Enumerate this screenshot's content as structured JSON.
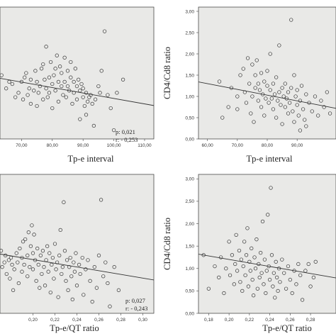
{
  "chart_data": [
    {
      "type": "scatter",
      "xlabel": "Tp-e interval",
      "ylabel": "",
      "xlim": [
        63,
        113
      ],
      "ylim": [
        0,
        3
      ],
      "xticks": [
        "70,00",
        "80,00",
        "90,00",
        "100,00",
        "110,00"
      ],
      "xtick_values": [
        70,
        80,
        90,
        100,
        110
      ],
      "yticks": [],
      "ytick_values": [],
      "annotations": [
        "p: 0,021",
        "r: - 0,253"
      ],
      "grid": false,
      "fit_line": [
        [
          63,
          1.38
        ],
        [
          113,
          0.76
        ]
      ],
      "points": [
        [
          63.5,
          1.45
        ],
        [
          65,
          1.15
        ],
        [
          66,
          1.3
        ],
        [
          67,
          1.25
        ],
        [
          68,
          0.95
        ],
        [
          69,
          1.05
        ],
        [
          70,
          1.3
        ],
        [
          70.5,
          0.9
        ],
        [
          71,
          1.4
        ],
        [
          71.5,
          1.5
        ],
        [
          72,
          1.0
        ],
        [
          72.5,
          1.15
        ],
        [
          73,
          0.8
        ],
        [
          73,
          1.35
        ],
        [
          74,
          1.1
        ],
        [
          74.5,
          1.55
        ],
        [
          75,
          0.75
        ],
        [
          75,
          1.3
        ],
        [
          75.5,
          1.05
        ],
        [
          76,
          1.2
        ],
        [
          76.5,
          1.6
        ],
        [
          77,
          1.7
        ],
        [
          77,
          0.9
        ],
        [
          77.5,
          1.35
        ],
        [
          78,
          2.1
        ],
        [
          78,
          1.15
        ],
        [
          78.5,
          0.95
        ],
        [
          79,
          1.4
        ],
        [
          79,
          1.05
        ],
        [
          79.5,
          1.75
        ],
        [
          80,
          1.25
        ],
        [
          80,
          0.7
        ],
        [
          80.5,
          1.45
        ],
        [
          81,
          1.6
        ],
        [
          81,
          1.1
        ],
        [
          81.5,
          1.9
        ],
        [
          82,
          1.3
        ],
        [
          82,
          0.85
        ],
        [
          82.5,
          1.65
        ],
        [
          83,
          1.2
        ],
        [
          83,
          1.5
        ],
        [
          83.5,
          1.0
        ],
        [
          84,
          1.85
        ],
        [
          84,
          1.3
        ],
        [
          84.5,
          0.95
        ],
        [
          85,
          1.2
        ],
        [
          85,
          1.55
        ],
        [
          85.5,
          1.1
        ],
        [
          86,
          1.4
        ],
        [
          86,
          1.75
        ],
        [
          86.5,
          0.8
        ],
        [
          87,
          1.3
        ],
        [
          87,
          1.05
        ],
        [
          87.5,
          1.6
        ],
        [
          88,
          1.2
        ],
        [
          88,
          0.9
        ],
        [
          88.5,
          1.35
        ],
        [
          89,
          0.45
        ],
        [
          89,
          1.1
        ],
        [
          89.5,
          1.25
        ],
        [
          90,
          0.95
        ],
        [
          90,
          1.15
        ],
        [
          90.5,
          0.75
        ],
        [
          91,
          0.55
        ],
        [
          91,
          1.05
        ],
        [
          91.5,
          0.85
        ],
        [
          92,
          0.95
        ],
        [
          92.5,
          1.0
        ],
        [
          93,
          0.8
        ],
        [
          93.5,
          0.3
        ],
        [
          94,
          0.9
        ],
        [
          95,
          1.2
        ],
        [
          95.5,
          1.05
        ],
        [
          96,
          1.55
        ],
        [
          97,
          2.45
        ],
        [
          98,
          1.0
        ],
        [
          99,
          0.7
        ],
        [
          100,
          0.2
        ],
        [
          101,
          1.05
        ],
        [
          103,
          1.35
        ]
      ]
    },
    {
      "type": "scatter",
      "xlabel": "Tp-e interval",
      "ylabel": "CD4/Cd8 ratio",
      "xlim": [
        57,
        103
      ],
      "ylim": [
        0,
        3.1
      ],
      "xticks": [
        "60,00",
        "70,00",
        "80,00",
        "90,00"
      ],
      "xtick_values": [
        60,
        70,
        80,
        90
      ],
      "yticks": [
        "0,00",
        "0,50",
        "1,00",
        "1,50",
        "2,00",
        "2,50",
        "3,00"
      ],
      "ytick_values": [
        0,
        0.5,
        1.0,
        1.5,
        2.0,
        2.5,
        3.0
      ],
      "annotations": [],
      "grid": false,
      "fit_line": [
        [
          57,
          1.34
        ],
        [
          103,
          0.72
        ]
      ],
      "points": [
        [
          64,
          1.35
        ],
        [
          65,
          0.5
        ],
        [
          67,
          0.75
        ],
        [
          68,
          1.2
        ],
        [
          70,
          1.0
        ],
        [
          70,
          0.7
        ],
        [
          71,
          1.5
        ],
        [
          72,
          1.65
        ],
        [
          72.5,
          1.1
        ],
        [
          73,
          0.85
        ],
        [
          73.5,
          1.9
        ],
        [
          74,
          1.3
        ],
        [
          74.5,
          0.6
        ],
        [
          75,
          1.75
        ],
        [
          75,
          1.0
        ],
        [
          75.5,
          0.4
        ],
        [
          76,
          1.5
        ],
        [
          76,
          1.2
        ],
        [
          76.5,
          1.85
        ],
        [
          77,
          1.3
        ],
        [
          77,
          0.9
        ],
        [
          77.5,
          1.15
        ],
        [
          78,
          1.55
        ],
        [
          78,
          0.75
        ],
        [
          78.5,
          1.05
        ],
        [
          79,
          1.35
        ],
        [
          79,
          0.55
        ],
        [
          79.5,
          0.95
        ],
        [
          80,
          1.25
        ],
        [
          80,
          1.6
        ],
        [
          80.5,
          0.85
        ],
        [
          81,
          1.15
        ],
        [
          81,
          2.0
        ],
        [
          81.5,
          0.95
        ],
        [
          82,
          0.7
        ],
        [
          82,
          1.3
        ],
        [
          82.5,
          1.05
        ],
        [
          83,
          0.5
        ],
        [
          83,
          1.45
        ],
        [
          83.5,
          0.9
        ],
        [
          84,
          2.2
        ],
        [
          84,
          1.1
        ],
        [
          84.5,
          0.8
        ],
        [
          85,
          1.2
        ],
        [
          85,
          0.35
        ],
        [
          85.5,
          1.0
        ],
        [
          86,
          0.75
        ],
        [
          86,
          1.3
        ],
        [
          86.5,
          0.95
        ],
        [
          87,
          0.6
        ],
        [
          87,
          1.1
        ],
        [
          87.5,
          0.85
        ],
        [
          88,
          2.8
        ],
        [
          88,
          1.2
        ],
        [
          88.5,
          0.65
        ],
        [
          89,
          1.5
        ],
        [
          89,
          0.4
        ],
        [
          89.5,
          1.0
        ],
        [
          90,
          0.8
        ],
        [
          90,
          1.15
        ],
        [
          90.5,
          0.55
        ],
        [
          91,
          0.9
        ],
        [
          91,
          0.2
        ],
        [
          91.5,
          1.25
        ],
        [
          92,
          0.7
        ],
        [
          92.5,
          0.45
        ],
        [
          93,
          1.05
        ],
        [
          93,
          0.3
        ],
        [
          94,
          0.85
        ],
        [
          95,
          0.65
        ],
        [
          96,
          1.0
        ],
        [
          97,
          0.55
        ],
        [
          98,
          0.9
        ],
        [
          99,
          0.75
        ],
        [
          100,
          1.1
        ],
        [
          101,
          0.6
        ]
      ]
    },
    {
      "type": "scatter",
      "xlabel": "Tp-e/QT ratio",
      "ylabel": "",
      "xlim": [
        0.17,
        0.31
      ],
      "ylim": [
        0,
        3
      ],
      "xticks": [
        "0,20",
        "0,22",
        "0,24",
        "0,26",
        "0,28",
        "0,30"
      ],
      "xtick_values": [
        0.2,
        0.22,
        0.24,
        0.26,
        0.28,
        0.3
      ],
      "yticks": [],
      "ytick_values": [],
      "annotations": [
        "p: 0,027",
        "r: - 0,243"
      ],
      "grid": false,
      "fit_line": [
        [
          0.17,
          1.28
        ],
        [
          0.31,
          0.72
        ]
      ],
      "points": [
        [
          0.171,
          1.35
        ],
        [
          0.172,
          1.0
        ],
        [
          0.174,
          1.1
        ],
        [
          0.175,
          1.25
        ],
        [
          0.176,
          0.85
        ],
        [
          0.178,
          1.15
        ],
        [
          0.179,
          0.75
        ],
        [
          0.18,
          1.2
        ],
        [
          0.181,
          1.05
        ],
        [
          0.182,
          0.5
        ],
        [
          0.183,
          0.95
        ],
        [
          0.185,
          1.3
        ],
        [
          0.186,
          1.1
        ],
        [
          0.187,
          0.65
        ],
        [
          0.188,
          1.4
        ],
        [
          0.19,
          1.2
        ],
        [
          0.19,
          0.9
        ],
        [
          0.191,
          1.55
        ],
        [
          0.192,
          1.05
        ],
        [
          0.193,
          1.6
        ],
        [
          0.195,
          1.25
        ],
        [
          0.195,
          0.8
        ],
        [
          0.196,
          1.75
        ],
        [
          0.197,
          1.0
        ],
        [
          0.198,
          1.45
        ],
        [
          0.199,
          1.9
        ],
        [
          0.2,
          1.3
        ],
        [
          0.2,
          0.95
        ],
        [
          0.201,
          1.7
        ],
        [
          0.202,
          1.15
        ],
        [
          0.203,
          0.7
        ],
        [
          0.204,
          1.4
        ],
        [
          0.205,
          1.05
        ],
        [
          0.206,
          0.55
        ],
        [
          0.207,
          1.25
        ],
        [
          0.208,
          0.85
        ],
        [
          0.209,
          1.35
        ],
        [
          0.21,
          1.0
        ],
        [
          0.211,
          0.6
        ],
        [
          0.212,
          1.15
        ],
        [
          0.213,
          1.45
        ],
        [
          0.214,
          0.9
        ],
        [
          0.215,
          1.3
        ],
        [
          0.216,
          0.45
        ],
        [
          0.217,
          1.05
        ],
        [
          0.218,
          1.2
        ],
        [
          0.219,
          0.75
        ],
        [
          0.22,
          1.5
        ],
        [
          0.221,
          0.95
        ],
        [
          0.222,
          1.1
        ],
        [
          0.223,
          0.35
        ],
        [
          0.224,
          1.25
        ],
        [
          0.225,
          1.8
        ],
        [
          0.226,
          0.85
        ],
        [
          0.227,
          1.0
        ],
        [
          0.228,
          2.4
        ],
        [
          0.229,
          1.35
        ],
        [
          0.23,
          0.7
        ],
        [
          0.231,
          1.15
        ],
        [
          0.232,
          0.5
        ],
        [
          0.233,
          1.0
        ],
        [
          0.234,
          1.2
        ],
        [
          0.235,
          0.8
        ],
        [
          0.236,
          0.3
        ],
        [
          0.237,
          1.1
        ],
        [
          0.238,
          0.9
        ],
        [
          0.239,
          1.3
        ],
        [
          0.24,
          0.6
        ],
        [
          0.242,
          1.05
        ],
        [
          0.243,
          0.85
        ],
        [
          0.245,
          1.2
        ],
        [
          0.246,
          0.4
        ],
        [
          0.248,
          0.95
        ],
        [
          0.25,
          1.15
        ],
        [
          0.252,
          0.7
        ],
        [
          0.254,
          0.25
        ],
        [
          0.256,
          1.0
        ],
        [
          0.258,
          0.55
        ],
        [
          0.26,
          1.25
        ],
        [
          0.262,
          2.45
        ],
        [
          0.264,
          0.8
        ],
        [
          0.266,
          1.1
        ],
        [
          0.268,
          0.65
        ],
        [
          0.27,
          0.15
        ],
        [
          0.274,
          1.0
        ],
        [
          0.278,
          0.5
        ]
      ]
    },
    {
      "type": "scatter",
      "xlabel": "Tp-e/QT ratio",
      "ylabel": "CD4/Cd8 ratio",
      "xlim": [
        0.17,
        0.305
      ],
      "ylim": [
        0,
        3.1
      ],
      "xticks": [
        "0,18",
        "0,20",
        "0,22",
        "0,24",
        "0,26",
        "0,28"
      ],
      "xtick_values": [
        0.18,
        0.2,
        0.22,
        0.24,
        0.26,
        0.28
      ],
      "yticks": [
        "0,00",
        "0,50",
        "1,00",
        "1,50",
        "2,00",
        "2,50",
        "3,00"
      ],
      "ytick_values": [
        0,
        0.5,
        1.0,
        1.5,
        2.0,
        2.5,
        3.0
      ],
      "annotations": [],
      "grid": false,
      "fit_line": [
        [
          0.17,
          1.32
        ],
        [
          0.305,
          0.79
        ]
      ],
      "points": [
        [
          0.175,
          1.3
        ],
        [
          0.18,
          0.55
        ],
        [
          0.186,
          1.05
        ],
        [
          0.19,
          0.8
        ],
        [
          0.192,
          1.25
        ],
        [
          0.195,
          0.45
        ],
        [
          0.197,
          1.0
        ],
        [
          0.2,
          1.6
        ],
        [
          0.201,
          0.85
        ],
        [
          0.203,
          1.3
        ],
        [
          0.205,
          0.65
        ],
        [
          0.206,
          1.1
        ],
        [
          0.207,
          1.75
        ],
        [
          0.208,
          0.95
        ],
        [
          0.21,
          1.4
        ],
        [
          0.211,
          0.7
        ],
        [
          0.212,
          1.2
        ],
        [
          0.213,
          0.5
        ],
        [
          0.214,
          1.05
        ],
        [
          0.215,
          1.6
        ],
        [
          0.216,
          0.85
        ],
        [
          0.217,
          1.3
        ],
        [
          0.218,
          1.9
        ],
        [
          0.219,
          0.6
        ],
        [
          0.22,
          1.15
        ],
        [
          0.221,
          0.95
        ],
        [
          0.222,
          1.45
        ],
        [
          0.223,
          0.75
        ],
        [
          0.224,
          0.4
        ],
        [
          0.225,
          1.25
        ],
        [
          0.226,
          1.0
        ],
        [
          0.227,
          1.65
        ],
        [
          0.228,
          0.55
        ],
        [
          0.229,
          1.1
        ],
        [
          0.23,
          0.8
        ],
        [
          0.231,
          1.35
        ],
        [
          0.232,
          0.9
        ],
        [
          0.233,
          2.05
        ],
        [
          0.234,
          0.65
        ],
        [
          0.235,
          1.2
        ],
        [
          0.236,
          0.45
        ],
        [
          0.237,
          0.95
        ],
        [
          0.238,
          2.2
        ],
        [
          0.239,
          1.05
        ],
        [
          0.24,
          0.75
        ],
        [
          0.241,
          2.8
        ],
        [
          0.242,
          1.3
        ],
        [
          0.243,
          0.6
        ],
        [
          0.244,
          0.9
        ],
        [
          0.245,
          0.35
        ],
        [
          0.246,
          1.15
        ],
        [
          0.247,
          0.8
        ],
        [
          0.248,
          0.5
        ],
        [
          0.249,
          1.0
        ],
        [
          0.25,
          0.7
        ],
        [
          0.252,
          1.2
        ],
        [
          0.254,
          0.9
        ],
        [
          0.256,
          0.55
        ],
        [
          0.258,
          1.05
        ],
        [
          0.26,
          0.75
        ],
        [
          0.262,
          0.45
        ],
        [
          0.264,
          0.95
        ],
        [
          0.266,
          0.65
        ],
        [
          0.268,
          1.1
        ],
        [
          0.27,
          0.85
        ],
        [
          0.272,
          0.3
        ],
        [
          0.275,
          0.95
        ],
        [
          0.278,
          1.1
        ],
        [
          0.28,
          0.6
        ],
        [
          0.283,
          0.8
        ],
        [
          0.285,
          1.15
        ]
      ]
    }
  ]
}
